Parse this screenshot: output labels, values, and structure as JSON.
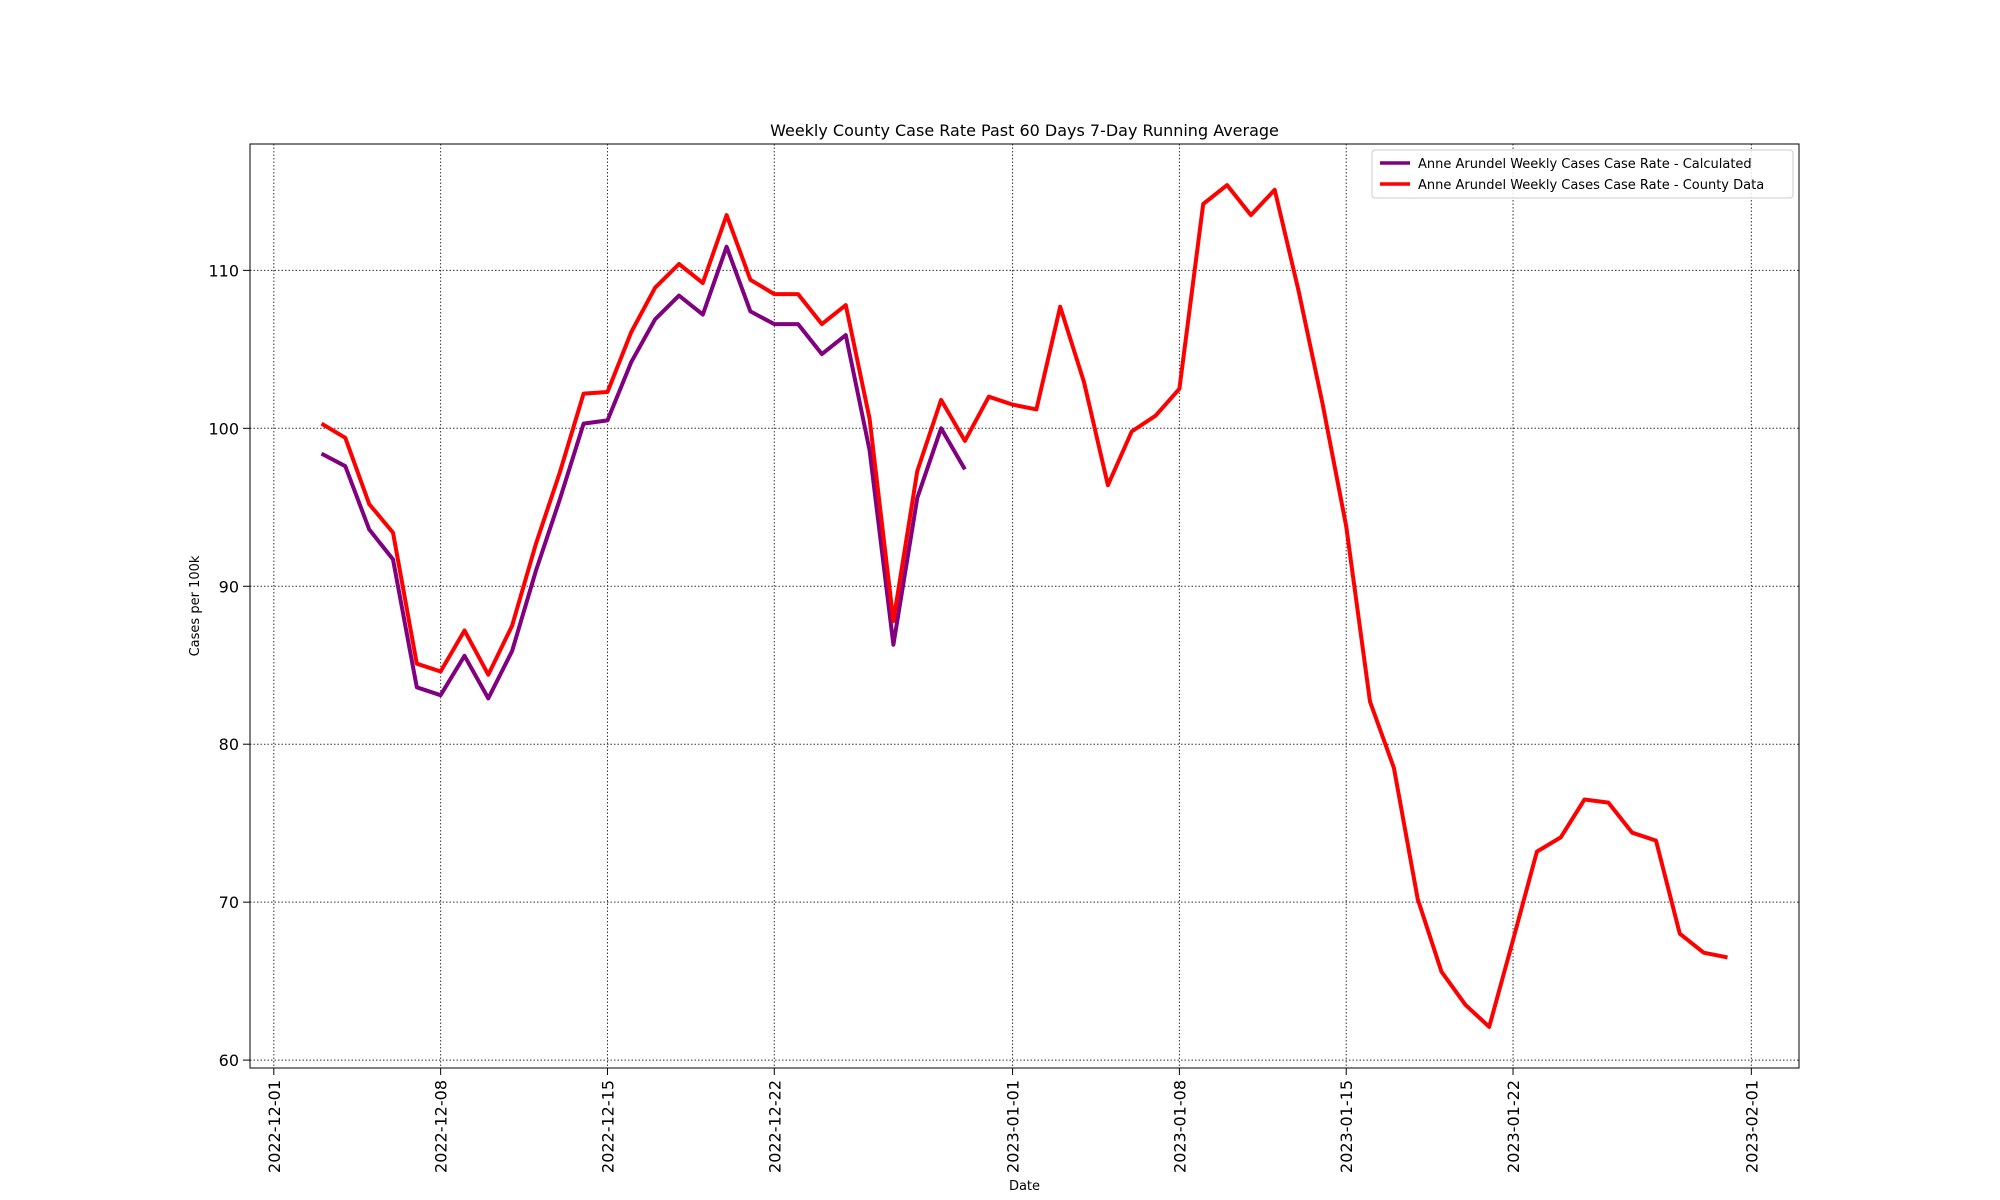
{
  "chart_data": {
    "type": "line",
    "title": "Weekly County Case Rate  Past 60 Days 7-Day Running Average",
    "xlabel": "Date",
    "ylabel": "Cases per 100k",
    "xlim": [
      "2022-11-30",
      "2023-02-03"
    ],
    "ylim": [
      59.5,
      118.0
    ],
    "grid": true,
    "legend_position": "top-right",
    "x_ticks": [
      "2022-12-01",
      "2022-12-08",
      "2022-12-15",
      "2022-12-22",
      "2023-01-01",
      "2023-01-08",
      "2023-01-15",
      "2023-01-22",
      "2023-02-01"
    ],
    "y_ticks": [
      60,
      70,
      80,
      90,
      100,
      110
    ],
    "series": [
      {
        "name": "Anne Arundel Weekly Cases Case Rate - Calculated",
        "color": "#800080",
        "x": [
          "2022-12-03",
          "2022-12-04",
          "2022-12-05",
          "2022-12-06",
          "2022-12-07",
          "2022-12-08",
          "2022-12-09",
          "2022-12-10",
          "2022-12-11",
          "2022-12-12",
          "2022-12-13",
          "2022-12-14",
          "2022-12-15",
          "2022-12-16",
          "2022-12-17",
          "2022-12-18",
          "2022-12-19",
          "2022-12-20",
          "2022-12-21",
          "2022-12-22",
          "2022-12-23",
          "2022-12-24",
          "2022-12-25",
          "2022-12-26",
          "2022-12-27",
          "2022-12-28",
          "2022-12-29",
          "2022-12-30",
          "2022-12-31"
        ],
        "values": [
          98.4,
          97.6,
          93.6,
          91.7,
          83.6,
          83.1,
          85.6,
          82.9,
          85.9,
          91.0,
          95.5,
          100.3,
          100.5,
          104.2,
          106.9,
          108.4,
          107.2,
          111.5,
          107.4,
          106.6,
          106.6,
          104.7,
          105.9,
          98.6,
          86.3,
          95.6,
          100.0,
          97.4,
          null
        ]
      },
      {
        "name": "Anne Arundel Weekly Cases Case Rate - County Data",
        "color": "#ff0000",
        "x": [
          "2022-12-03",
          "2022-12-04",
          "2022-12-05",
          "2022-12-06",
          "2022-12-07",
          "2022-12-08",
          "2022-12-09",
          "2022-12-10",
          "2022-12-11",
          "2022-12-12",
          "2022-12-13",
          "2022-12-14",
          "2022-12-15",
          "2022-12-16",
          "2022-12-17",
          "2022-12-18",
          "2022-12-19",
          "2022-12-20",
          "2022-12-21",
          "2022-12-22",
          "2022-12-23",
          "2022-12-24",
          "2022-12-25",
          "2022-12-26",
          "2022-12-27",
          "2022-12-28",
          "2022-12-29",
          "2022-12-30",
          "2022-12-31",
          "2023-01-01",
          "2023-01-02",
          "2023-01-03",
          "2023-01-04",
          "2023-01-05",
          "2023-01-06",
          "2023-01-07",
          "2023-01-08",
          "2023-01-09",
          "2023-01-10",
          "2023-01-11",
          "2023-01-12",
          "2023-01-13",
          "2023-01-14",
          "2023-01-15",
          "2023-01-16",
          "2023-01-17",
          "2023-01-18",
          "2023-01-19",
          "2023-01-20",
          "2023-01-21",
          "2023-01-22",
          "2023-01-23",
          "2023-01-24",
          "2023-01-25",
          "2023-01-26",
          "2023-01-27",
          "2023-01-28",
          "2023-01-29",
          "2023-01-30",
          "2023-01-31"
        ],
        "values": [
          100.3,
          99.4,
          95.2,
          93.4,
          85.1,
          84.6,
          87.2,
          84.4,
          87.5,
          92.7,
          97.2,
          102.2,
          102.3,
          106.1,
          108.9,
          110.4,
          109.2,
          113.5,
          109.4,
          108.5,
          108.5,
          106.6,
          107.8,
          100.6,
          87.8,
          97.3,
          101.8,
          99.2,
          102.0,
          101.5,
          101.2,
          107.7,
          102.9,
          96.4,
          99.8,
          100.8,
          102.5,
          114.2,
          115.4,
          113.5,
          115.1,
          108.7,
          101.6,
          93.8,
          82.7,
          78.5,
          70.2,
          65.6,
          63.5,
          62.1,
          67.6,
          73.2,
          74.1,
          76.5,
          76.3,
          74.4,
          73.9,
          68.0,
          66.8,
          66.5
        ]
      }
    ]
  }
}
